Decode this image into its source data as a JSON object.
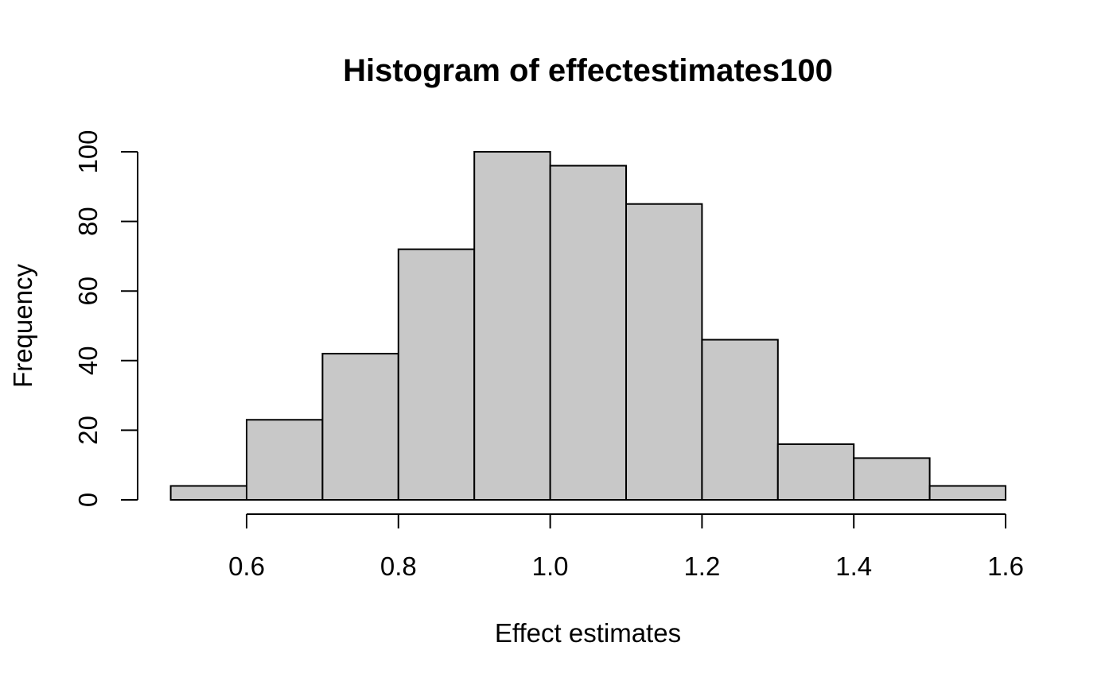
{
  "chart_data": {
    "type": "bar",
    "title": "Histogram of effectestimates100",
    "xlabel": "Effect estimates",
    "ylabel": "Frequency",
    "bins": [
      {
        "start": 0.5,
        "end": 0.6,
        "count": 4
      },
      {
        "start": 0.6,
        "end": 0.7,
        "count": 23
      },
      {
        "start": 0.7,
        "end": 0.8,
        "count": 42
      },
      {
        "start": 0.8,
        "end": 0.9,
        "count": 72
      },
      {
        "start": 0.9,
        "end": 1.0,
        "count": 100
      },
      {
        "start": 1.0,
        "end": 1.1,
        "count": 96
      },
      {
        "start": 1.1,
        "end": 1.2,
        "count": 85
      },
      {
        "start": 1.2,
        "end": 1.3,
        "count": 46
      },
      {
        "start": 1.3,
        "end": 1.4,
        "count": 16
      },
      {
        "start": 1.4,
        "end": 1.5,
        "count": 12
      },
      {
        "start": 1.5,
        "end": 1.6,
        "count": 4
      }
    ],
    "x_ticks": [
      {
        "value": 0.6,
        "label": "0.6"
      },
      {
        "value": 0.8,
        "label": "0.8"
      },
      {
        "value": 1.0,
        "label": "1.0"
      },
      {
        "value": 1.2,
        "label": "1.2"
      },
      {
        "value": 1.4,
        "label": "1.4"
      },
      {
        "value": 1.6,
        "label": "1.6"
      }
    ],
    "y_ticks": [
      {
        "value": 0,
        "label": "0"
      },
      {
        "value": 20,
        "label": "20"
      },
      {
        "value": 40,
        "label": "40"
      },
      {
        "value": 60,
        "label": "60"
      },
      {
        "value": 80,
        "label": "80"
      },
      {
        "value": 100,
        "label": "100"
      }
    ],
    "xlim": [
      0.5,
      1.6
    ],
    "ylim": [
      0,
      100
    ],
    "x_axis_range": [
      0.6,
      1.6
    ],
    "grid": false,
    "legend": "none",
    "colors": {
      "bar_fill": "#c8c8c8",
      "bar_stroke": "#000000",
      "axis": "#000000",
      "background": "#ffffff"
    }
  }
}
